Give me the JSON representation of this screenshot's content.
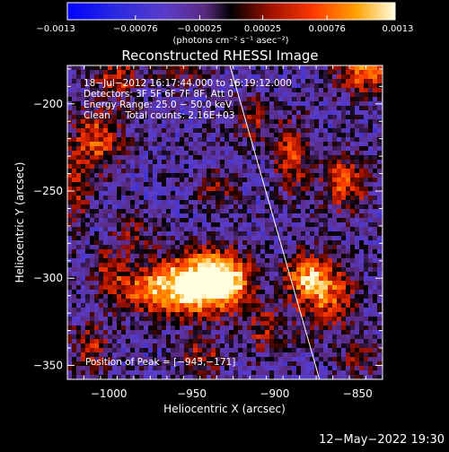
{
  "chart_data": {
    "type": "heatmap",
    "title": "Reconstructed RHESSI Image",
    "xlabel": "Heliocentric X (arcsec)",
    "ylabel": "Heliocentric Y (arcsec)",
    "xlim": [
      -1025,
      -835
    ],
    "ylim": [
      -358,
      -178
    ],
    "xticks": [
      -1000,
      -950,
      -900,
      -850
    ],
    "xtick_labels": [
      "−1000",
      "−950",
      "−900",
      "−850"
    ],
    "yticks": [
      -200,
      -250,
      -300,
      -350
    ],
    "ytick_labels": [
      "−200",
      "−250",
      "−300",
      "−350"
    ],
    "colorbar": {
      "range": [
        -0.0013,
        0.0013
      ],
      "tick_values": [
        -0.0013,
        -0.00076,
        -0.00025,
        0.00025,
        0.00076,
        0.0013
      ],
      "tick_labels": [
        "−0.0013",
        "−0.00076",
        "−0.00025",
        "0.00025",
        "0.00076",
        "0.0013"
      ],
      "unit": "(photons cm⁻² s⁻¹ asec⁻²)"
    },
    "annotations": [
      "18−Jul−2012 16:17:44.000 to 16:19:12.000",
      "Detectors: 3F 5F 6F 7F 8F, Att 0",
      "Energy Range: 25.0 − 50.0 keV",
      "Clean     Total counts: 2.16E+03"
    ],
    "peak_label": "Position of Peak = [−943,−171]",
    "peak": [
      -943,
      -171
    ],
    "limb_line": [
      [
        -927,
        -178
      ],
      [
        -873,
        -358
      ]
    ],
    "sources": [
      {
        "x": -945,
        "y": -303,
        "intensity": 1.0,
        "sx": 18,
        "sy": 12
      },
      {
        "x": -930,
        "y": -300,
        "intensity": 0.6,
        "sx": 10,
        "sy": 9
      },
      {
        "x": -975,
        "y": -307,
        "intensity": 0.55,
        "sx": 16,
        "sy": 9
      },
      {
        "x": -870,
        "y": -308,
        "intensity": 0.65,
        "sx": 12,
        "sy": 14
      },
      {
        "x": -883,
        "y": -298,
        "intensity": 0.5,
        "sx": 8,
        "sy": 8
      },
      {
        "x": -1007,
        "y": -220,
        "intensity": 0.55,
        "sx": 10,
        "sy": 12
      },
      {
        "x": -1020,
        "y": -250,
        "intensity": 0.4,
        "sx": 6,
        "sy": 14
      },
      {
        "x": -995,
        "y": -185,
        "intensity": 0.45,
        "sx": 9,
        "sy": 8
      },
      {
        "x": -890,
        "y": -230,
        "intensity": 0.5,
        "sx": 7,
        "sy": 14
      },
      {
        "x": -858,
        "y": -245,
        "intensity": 0.55,
        "sx": 10,
        "sy": 11
      },
      {
        "x": -915,
        "y": -210,
        "intensity": 0.35,
        "sx": 8,
        "sy": 9
      },
      {
        "x": -845,
        "y": -180,
        "intensity": 0.7,
        "sx": 12,
        "sy": 9
      },
      {
        "x": -935,
        "y": -250,
        "intensity": 0.3,
        "sx": 8,
        "sy": 8
      },
      {
        "x": -955,
        "y": -180,
        "intensity": 0.3,
        "sx": 10,
        "sy": 6
      },
      {
        "x": -1010,
        "y": -340,
        "intensity": 0.4,
        "sx": 8,
        "sy": 10
      },
      {
        "x": -945,
        "y": -345,
        "intensity": 0.35,
        "sx": 10,
        "sy": 8
      },
      {
        "x": -905,
        "y": -330,
        "intensity": 0.35,
        "sx": 9,
        "sy": 9
      },
      {
        "x": -985,
        "y": -275,
        "intensity": 0.3,
        "sx": 8,
        "sy": 8
      },
      {
        "x": -1000,
        "y": -295,
        "intensity": 0.35,
        "sx": 8,
        "sy": 8
      },
      {
        "x": -850,
        "y": -345,
        "intensity": 0.3,
        "sx": 8,
        "sy": 8
      }
    ],
    "background_level": -0.25
  },
  "footer": {
    "timestamp": "12−May−2022 19:30"
  }
}
